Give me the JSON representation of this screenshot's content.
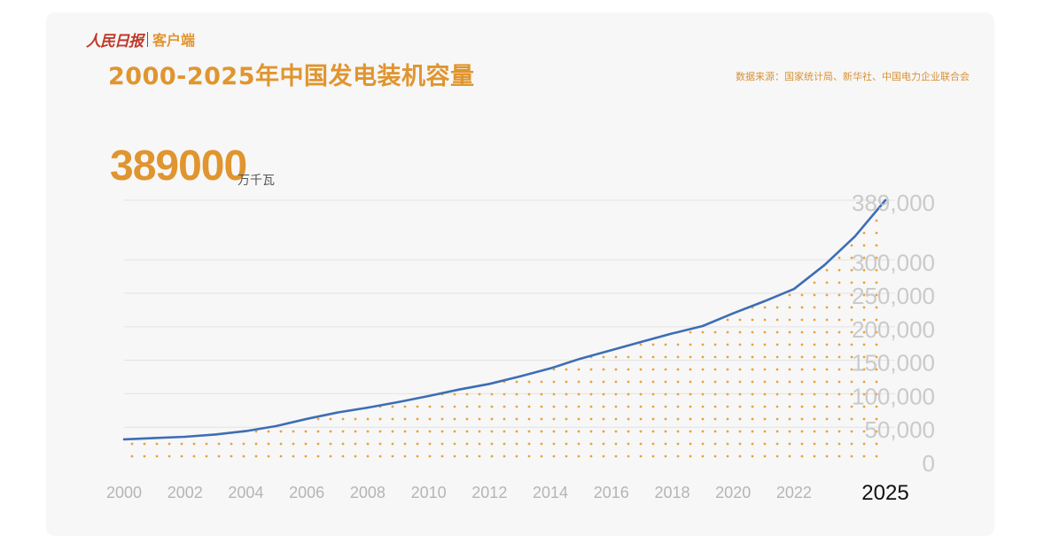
{
  "header": {
    "logo_text": "人民日报",
    "logo_suffix": "客户端",
    "title": "2000-2025年中国发电装机容量",
    "source": "数据来源：国家统计局、新华社、中国电力企业联合会"
  },
  "highlight": {
    "value": "389000",
    "unit": "万千瓦"
  },
  "colors": {
    "accent": "#e0952f",
    "line": "#3d6eb4",
    "grid": "#e3e3e3",
    "axis_text": "#b5b5b5"
  },
  "chart_data": {
    "type": "area",
    "title": "2000-2025年中国发电装机容量",
    "unit": "万千瓦",
    "x": [
      2000,
      2001,
      2002,
      2003,
      2004,
      2005,
      2006,
      2007,
      2008,
      2009,
      2010,
      2011,
      2012,
      2013,
      2014,
      2015,
      2016,
      2017,
      2018,
      2019,
      2020,
      2021,
      2022,
      2023,
      2024,
      2025
    ],
    "values": [
      31900,
      33900,
      35700,
      39100,
      44200,
      51700,
      62400,
      71800,
      79300,
      87400,
      96600,
      106300,
      114700,
      125800,
      137900,
      152500,
      165000,
      177700,
      190000,
      201100,
      220100,
      237700,
      256400,
      292200,
      334900,
      389000
    ],
    "xticks": [
      "2000",
      "2002",
      "2004",
      "2006",
      "2008",
      "2010",
      "2012",
      "2014",
      "2016",
      "2018",
      "2020",
      "2022",
      "2025"
    ],
    "yticks": [
      "0",
      "50,000",
      "100,000",
      "150,000",
      "200,000",
      "250,000",
      "300,000",
      "389,000"
    ],
    "ytick_values": [
      0,
      50000,
      100000,
      150000,
      200000,
      250000,
      300000,
      389000
    ],
    "ylim": [
      0,
      389000
    ],
    "grid": true,
    "legend": "none"
  }
}
